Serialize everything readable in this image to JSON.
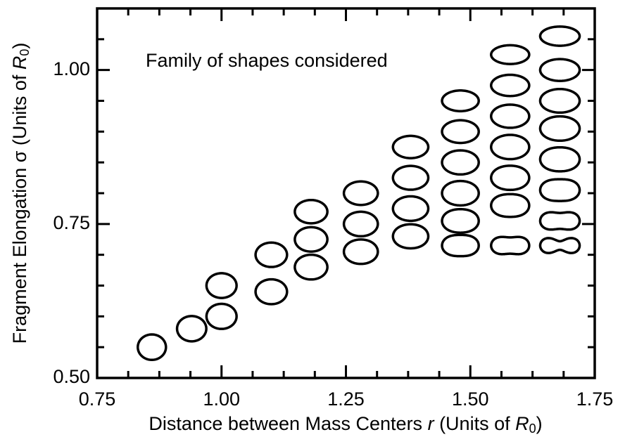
{
  "chart_data": {
    "type": "scatter",
    "annotation": "Family of shapes considered",
    "x_label": [
      "Distance between Mass Centers ",
      "r",
      " (Units of ",
      "R",
      "0",
      ")"
    ],
    "y_label": [
      "Fragment Elongation σ (Units of ",
      "R",
      "0",
      ")"
    ],
    "x": [
      0.86,
      0.94,
      1.0,
      1.0,
      1.1,
      1.1,
      1.18,
      1.18,
      1.18,
      1.28,
      1.28,
      1.28,
      1.38,
      1.38,
      1.38,
      1.38,
      1.48,
      1.48,
      1.48,
      1.48,
      1.48,
      1.48,
      1.58,
      1.58,
      1.58,
      1.58,
      1.58,
      1.58,
      1.58,
      1.68,
      1.68,
      1.68,
      1.68,
      1.68,
      1.68,
      1.68,
      1.68
    ],
    "values": [
      0.55,
      0.58,
      0.6,
      0.65,
      0.64,
      0.7,
      0.68,
      0.725,
      0.77,
      0.705,
      0.75,
      0.8,
      0.73,
      0.775,
      0.825,
      0.875,
      0.715,
      0.755,
      0.8,
      0.85,
      0.9,
      0.95,
      0.715,
      0.78,
      0.825,
      0.875,
      0.925,
      0.975,
      1.025,
      0.715,
      0.755,
      0.805,
      0.855,
      0.905,
      0.95,
      1.0,
      1.055
    ],
    "color": "#000000",
    "xlim": [
      0.75,
      1.75
    ],
    "ylim": [
      0.5,
      1.1
    ],
    "xticks": [
      {
        "value": 0.75,
        "label": "0.75"
      },
      {
        "value": 1.0,
        "label": "1.00"
      },
      {
        "value": 1.25,
        "label": "1.25"
      },
      {
        "value": 1.5,
        "label": "1.50"
      },
      {
        "value": 1.75,
        "label": "1.75"
      }
    ],
    "yticks": [
      {
        "value": 0.5,
        "label": "0.50"
      },
      {
        "value": 0.75,
        "label": "0.75"
      },
      {
        "value": 1.0,
        "label": "1.00"
      }
    ],
    "x_minor_ticks": [
      0.8125,
      0.875,
      0.9375,
      1.0625,
      1.125,
      1.1875,
      1.3125,
      1.375,
      1.4375,
      1.5625,
      1.625,
      1.6875
    ],
    "y_minor_ticks": [
      0.55,
      0.6,
      0.65,
      0.7,
      0.8,
      0.85,
      0.9,
      0.95,
      1.05
    ]
  }
}
